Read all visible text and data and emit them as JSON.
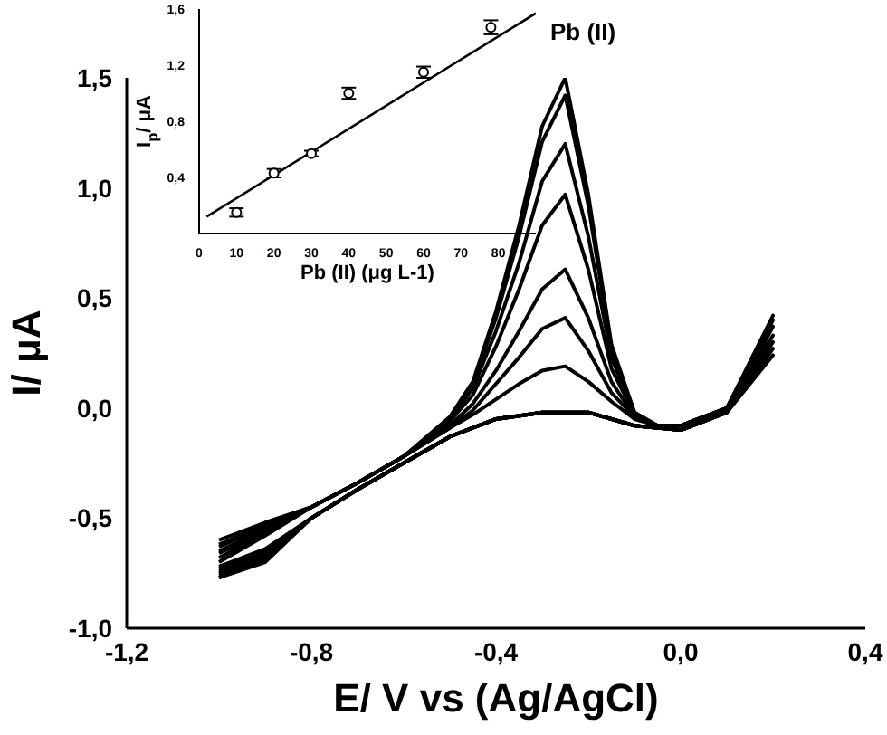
{
  "chart_data": [
    {
      "type": "line",
      "xlabel": "E/ V vs (Ag/AgCl)",
      "ylabel": "I/ μA",
      "marker": "none",
      "xlim": [
        -1.2,
        0.4
      ],
      "ylim": [
        -1.0,
        1.5
      ],
      "xticks": [
        {
          "value": -1.2,
          "label": "-1,2"
        },
        {
          "value": -0.8,
          "label": "-0,8"
        },
        {
          "value": -0.4,
          "label": "-0,4"
        },
        {
          "value": 0,
          "label": "0,0"
        },
        {
          "value": 0.4,
          "label": "0,4"
        }
      ],
      "yticks": [
        {
          "value": -1.0,
          "label": "-1,0"
        },
        {
          "value": -0.5,
          "label": "-0,5"
        },
        {
          "value": 0,
          "label": "0,0"
        },
        {
          "value": 0.5,
          "label": "0,5"
        },
        {
          "value": 1.0,
          "label": "1,0"
        },
        {
          "value": 1.5,
          "label": "1,5"
        }
      ],
      "x": [
        -1.0,
        -0.9,
        -0.8,
        -0.7,
        -0.6,
        -0.5,
        -0.45,
        -0.4,
        -0.35,
        -0.3,
        -0.25,
        -0.2,
        -0.15,
        -0.1,
        -0.05,
        0.0,
        0.1,
        0.2,
        0.1,
        0.0,
        -0.1,
        -0.2,
        -0.3,
        -0.4,
        -0.5,
        -0.6,
        -0.7,
        -0.8,
        -0.9,
        -1.0
      ],
      "series": [
        {
          "color": "#000000",
          "values": [
            -0.6,
            -0.52,
            -0.45,
            -0.34,
            -0.22,
            -0.04,
            0.12,
            0.44,
            0.83,
            1.28,
            1.5,
            0.97,
            0.29,
            -0.02,
            -0.08,
            -0.08,
            0.0,
            0.42,
            -0.02,
            -0.1,
            -0.08,
            -0.02,
            -0.02,
            -0.05,
            -0.13,
            -0.25,
            -0.37,
            -0.5,
            -0.64,
            -0.72
          ]
        },
        {
          "color": "#000000",
          "values": [
            -0.62,
            -0.53,
            -0.45,
            -0.34,
            -0.22,
            -0.05,
            0.11,
            0.41,
            0.78,
            1.21,
            1.42,
            0.92,
            0.27,
            -0.02,
            -0.08,
            -0.08,
            0.0,
            0.4,
            -0.02,
            -0.1,
            -0.08,
            -0.02,
            -0.02,
            -0.05,
            -0.13,
            -0.25,
            -0.37,
            -0.5,
            -0.65,
            -0.73
          ]
        },
        {
          "color": "#000000",
          "values": [
            -0.63,
            -0.54,
            -0.45,
            -0.34,
            -0.22,
            -0.05,
            0.09,
            0.35,
            0.66,
            1.03,
            1.2,
            0.78,
            0.23,
            -0.03,
            -0.08,
            -0.08,
            0.0,
            0.37,
            -0.02,
            -0.1,
            -0.08,
            -0.02,
            -0.02,
            -0.05,
            -0.13,
            -0.25,
            -0.37,
            -0.5,
            -0.66,
            -0.74
          ]
        },
        {
          "color": "#000000",
          "values": [
            -0.65,
            -0.55,
            -0.45,
            -0.34,
            -0.22,
            -0.06,
            0.06,
            0.28,
            0.54,
            0.83,
            0.97,
            0.63,
            0.18,
            -0.03,
            -0.08,
            -0.08,
            0.0,
            0.33,
            -0.02,
            -0.1,
            -0.08,
            -0.02,
            -0.02,
            -0.05,
            -0.13,
            -0.25,
            -0.37,
            -0.5,
            -0.67,
            -0.75
          ]
        },
        {
          "color": "#000000",
          "values": [
            -0.66,
            -0.56,
            -0.45,
            -0.34,
            -0.22,
            -0.08,
            0.02,
            0.17,
            0.35,
            0.54,
            0.63,
            0.41,
            0.12,
            -0.04,
            -0.08,
            -0.08,
            0.0,
            0.3,
            -0.02,
            -0.1,
            -0.08,
            -0.02,
            -0.02,
            -0.05,
            -0.13,
            -0.25,
            -0.37,
            -0.5,
            -0.68,
            -0.76
          ]
        },
        {
          "color": "#000000",
          "values": [
            -0.68,
            -0.57,
            -0.45,
            -0.34,
            -0.22,
            -0.09,
            -0.01,
            0.11,
            0.23,
            0.36,
            0.41,
            0.26,
            0.07,
            -0.04,
            -0.08,
            -0.08,
            0.0,
            0.27,
            -0.02,
            -0.1,
            -0.08,
            -0.02,
            -0.02,
            -0.05,
            -0.13,
            -0.25,
            -0.37,
            -0.5,
            -0.69,
            -0.77
          ]
        },
        {
          "color": "#000000",
          "values": [
            -0.7,
            -0.58,
            -0.45,
            -0.34,
            -0.22,
            -0.09,
            -0.03,
            0.04,
            0.11,
            0.17,
            0.19,
            0.12,
            0.03,
            -0.05,
            -0.08,
            -0.08,
            0.0,
            0.24,
            -0.02,
            -0.1,
            -0.08,
            -0.02,
            -0.02,
            -0.05,
            -0.13,
            -0.25,
            -0.37,
            -0.5,
            -0.7,
            -0.77
          ]
        }
      ]
    },
    {
      "type": "scatter",
      "xlabel": "Pb (II) (μg L-1)",
      "ylabel": "I$_{p}$/ μA",
      "annotations": [
        "Pb (II)"
      ],
      "marker": "circle",
      "xlim": [
        0,
        90
      ],
      "ylim": [
        0,
        1.6
      ],
      "xticks": [
        0,
        10,
        20,
        30,
        40,
        50,
        60,
        70,
        80
      ],
      "yticks": [
        {
          "value": 0.4,
          "label": "0,4"
        },
        {
          "value": 0.8,
          "label": "0,8"
        },
        {
          "value": 1.2,
          "label": "1,2"
        },
        {
          "value": 1.6,
          "label": "1,6"
        }
      ],
      "x": [
        10,
        20,
        30,
        40,
        60,
        78
      ],
      "series": [
        {
          "color": "#000000",
          "values": [
            0.15,
            0.43,
            0.57,
            1.0,
            1.15,
            1.47
          ],
          "errors": [
            0.03,
            0.03,
            0.02,
            0.04,
            0.04,
            0.05
          ]
        },
        {
          "type": "line",
          "marker": "none",
          "color": "#000000",
          "x": [
            2,
            90
          ],
          "values": [
            0.12,
            1.57
          ]
        }
      ]
    }
  ]
}
